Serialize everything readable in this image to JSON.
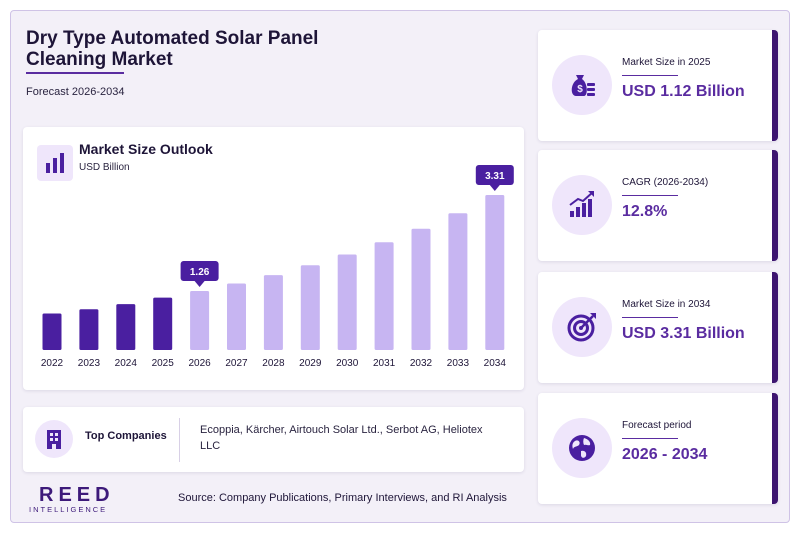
{
  "header": {
    "title": "Dry Type Automated Solar Panel Cleaning Market",
    "subtitle": "Forecast 2026-2034"
  },
  "chart_panel": {
    "title": "Market Size Outlook",
    "unit": "USD Billion",
    "icon": "bar-chart-icon"
  },
  "chart_data": {
    "type": "bar",
    "title": "Market Size Outlook",
    "ylabel": "USD Billion",
    "categories": [
      "2022",
      "2023",
      "2024",
      "2025",
      "2026",
      "2027",
      "2028",
      "2029",
      "2030",
      "2031",
      "2032",
      "2033",
      "2034"
    ],
    "values": [
      0.78,
      0.87,
      0.98,
      1.12,
      1.26,
      1.42,
      1.6,
      1.81,
      2.04,
      2.3,
      2.59,
      2.92,
      3.31
    ],
    "labeled_points": [
      {
        "category": "2026",
        "label": "1.26"
      },
      {
        "category": "2034",
        "label": "3.31"
      }
    ],
    "historical_color": "#4a1fa0",
    "forecast_color": "#c7b5f2",
    "label_color": "#4a1fa0",
    "ylim": [
      0,
      3.31
    ],
    "grid": false
  },
  "companies": {
    "label": "Top Companies",
    "list": "Ecoppia, Kärcher, Airtouch Solar Ltd., Serbot AG, Heliotex LLC",
    "icon": "building-icon"
  },
  "branding": {
    "logo_main": "REED",
    "logo_sub": "INTELLIGENCE"
  },
  "source": "Source: Company Publications, Primary Interviews, and RI Analysis",
  "kpis": [
    {
      "label": "Market Size in 2025",
      "value": "USD 1.12 Billion",
      "icon": "money-bag-icon"
    },
    {
      "label": "CAGR (2026-2034)",
      "value": "12.8%",
      "icon": "growth-chart-icon"
    },
    {
      "label": "Market Size in 2034",
      "value": "USD 3.31 Billion",
      "icon": "target-icon"
    },
    {
      "label": "Forecast period",
      "value": "2026 - 2034",
      "icon": "globe-icon"
    }
  ],
  "colors": {
    "accent": "#5a2ca0",
    "dark": "#3d1570",
    "icon_bg": "#efe6fb"
  }
}
